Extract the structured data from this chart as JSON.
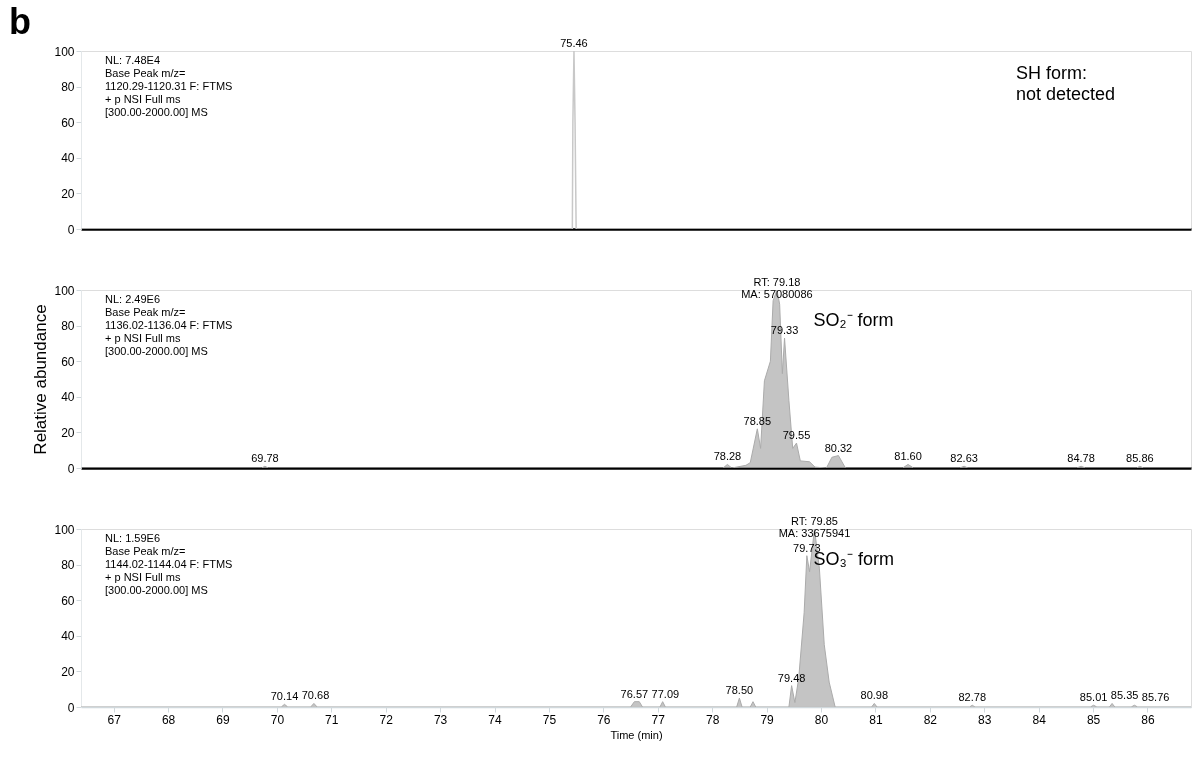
{
  "chart_data": [
    {
      "type": "line",
      "title": "b",
      "xlim": [
        66.4,
        86.8
      ],
      "ylim": [
        0,
        100
      ],
      "yticks": [
        0,
        20,
        40,
        60,
        80,
        100
      ],
      "tick_labels": "y",
      "grid": false,
      "series": [
        {
          "color": "#c8c8c8",
          "x": [
            66.4,
            75.4,
            75.43,
            75.44,
            75.46,
            75.48,
            75.5,
            86.8
          ],
          "values": [
            0,
            0,
            0,
            60,
            100,
            60,
            0,
            0
          ]
        }
      ],
      "annotations": [
        "NL: 7.48E4\nBase Peak m/z=\n1120.29-1120.31 F: FTMS\n+ p NSI Full ms\n[300.00-2000.00]  MS",
        "SH form:\nnot detected",
        {
          "text": "75.46",
          "x": 75.46,
          "y": 100
        }
      ]
    },
    {
      "type": "area",
      "ylabel": "Relative abundance",
      "xlim": [
        66.4,
        86.8
      ],
      "ylim": [
        0,
        100
      ],
      "yticks": [
        0,
        20,
        40,
        60,
        80,
        100
      ],
      "tick_labels": "y",
      "grid": false,
      "series": [
        {
          "color": "#ababab",
          "x": [
            66.4,
            69.72,
            69.78,
            69.84,
            78.2,
            78.28,
            78.36,
            78.62,
            78.7,
            78.83,
            78.89,
            78.96,
            79.07,
            79.12,
            79.19,
            79.24,
            79.29,
            79.33,
            79.41,
            79.48,
            79.55,
            79.62,
            79.79,
            79.89,
            80.1,
            80.2,
            80.32,
            80.45,
            81.5,
            81.6,
            81.7,
            82.55,
            82.63,
            82.7,
            84.7,
            84.78,
            84.86,
            85.8,
            85.86,
            85.93,
            86.8
          ],
          "values": [
            0,
            0,
            1,
            0,
            0,
            2,
            0,
            1.5,
            3,
            22,
            11,
            49,
            60,
            94,
            100,
            92,
            53,
            73,
            38,
            11,
            14,
            4,
            3.5,
            0.5,
            0,
            6,
            7,
            0,
            0,
            2,
            0,
            0,
            1,
            0,
            0,
            1,
            0,
            0,
            1,
            0,
            0
          ]
        }
      ],
      "annotations": [
        "NL: 2.49E6\nBase Peak m/z=\n1136.02-1136.04 F: FTMS\n+ p NSI Full ms\n[300.00-2000.00]  MS",
        "SO₂⁻ form",
        {
          "text": "RT: 79.18\nMA: 57080086",
          "x": 79.19,
          "y": 100
        },
        {
          "text": "79.33",
          "x": 79.33,
          "y": 73
        },
        {
          "text": "78.85",
          "x": 78.83,
          "y": 22
        },
        {
          "text": "79.55",
          "x": 79.55,
          "y": 14
        },
        {
          "text": "80.32",
          "x": 80.32,
          "y": 7
        },
        {
          "text": "78.28",
          "x": 78.28,
          "y": 2
        },
        {
          "text": "69.78",
          "x": 69.78,
          "y": 1
        },
        {
          "text": "81.60",
          "x": 81.6,
          "y": 2
        },
        {
          "text": "82.63",
          "x": 82.63,
          "y": 1
        },
        {
          "text": "84.78",
          "x": 84.78,
          "y": 1
        },
        {
          "text": "85.86",
          "x": 85.86,
          "y": 1
        }
      ]
    },
    {
      "type": "area",
      "xlabel": "Time (min)",
      "xlim": [
        66.4,
        86.8
      ],
      "ylim": [
        0,
        100
      ],
      "yticks": [
        0,
        20,
        40,
        60,
        80,
        100
      ],
      "xticks": [
        67,
        68,
        69,
        70,
        71,
        72,
        73,
        74,
        75,
        76,
        77,
        78,
        79,
        80,
        81,
        82,
        83,
        84,
        85,
        86
      ],
      "grid": false,
      "series": [
        {
          "color": "#ababab",
          "x": [
            66.4,
            70.08,
            70.14,
            70.2,
            70.62,
            70.68,
            70.74,
            76.5,
            76.57,
            76.66,
            76.72,
            77.04,
            77.09,
            77.14,
            78.45,
            78.5,
            78.55,
            78.7,
            78.75,
            78.8,
            79.41,
            79.46,
            79.52,
            79.59,
            79.69,
            79.74,
            79.79,
            79.88,
            79.97,
            80.06,
            80.15,
            80.26,
            80.93,
            80.98,
            81.03,
            82.73,
            82.78,
            82.83,
            84.95,
            85.01,
            85.07,
            85.3,
            85.35,
            85.4,
            85.7,
            85.76,
            85.82,
            86.8
          ],
          "values": [
            0,
            0,
            1.5,
            0,
            0,
            2,
            0,
            0,
            3,
            3,
            0,
            0,
            3,
            0,
            0,
            5,
            0,
            0,
            3,
            0,
            0,
            12,
            2.5,
            16,
            53,
            85,
            76,
            100,
            78,
            35,
            14,
            0,
            0,
            2,
            0,
            0,
            1,
            0,
            0,
            1,
            0,
            0,
            2,
            0,
            0,
            1,
            0,
            0
          ]
        }
      ],
      "annotations": [
        "NL: 1.59E6\nBase Peak m/z=\n1144.02-1144.04 F: FTMS\n+ p NSI Full ms\n[300.00-2000.00]  MS",
        "SO₃⁻ form",
        {
          "text": "RT: 79.85\nMA: 33675941",
          "x": 79.88,
          "y": 100
        },
        {
          "text": "79.73",
          "x": 79.74,
          "y": 85
        },
        {
          "text": "79.48",
          "x": 79.46,
          "y": 12
        },
        {
          "text": "78.50",
          "x": 78.5,
          "y": 5
        },
        {
          "text": "77.09",
          "x": 77.09,
          "y": 3
        },
        {
          "text": "76.57",
          "x": 76.57,
          "y": 3
        },
        {
          "text": "70.14",
          "x": 70.14,
          "y": 1.5
        },
        {
          "text": "70.68",
          "x": 70.68,
          "y": 2
        },
        {
          "text": "80.98",
          "x": 80.98,
          "y": 2
        },
        {
          "text": "82.78",
          "x": 82.78,
          "y": 1
        },
        {
          "text": "85.01",
          "x": 85.01,
          "y": 1
        },
        {
          "text": "85.35",
          "x": 85.35,
          "y": 2
        },
        {
          "text": "85.76",
          "x": 85.76,
          "y": 1
        }
      ]
    }
  ]
}
